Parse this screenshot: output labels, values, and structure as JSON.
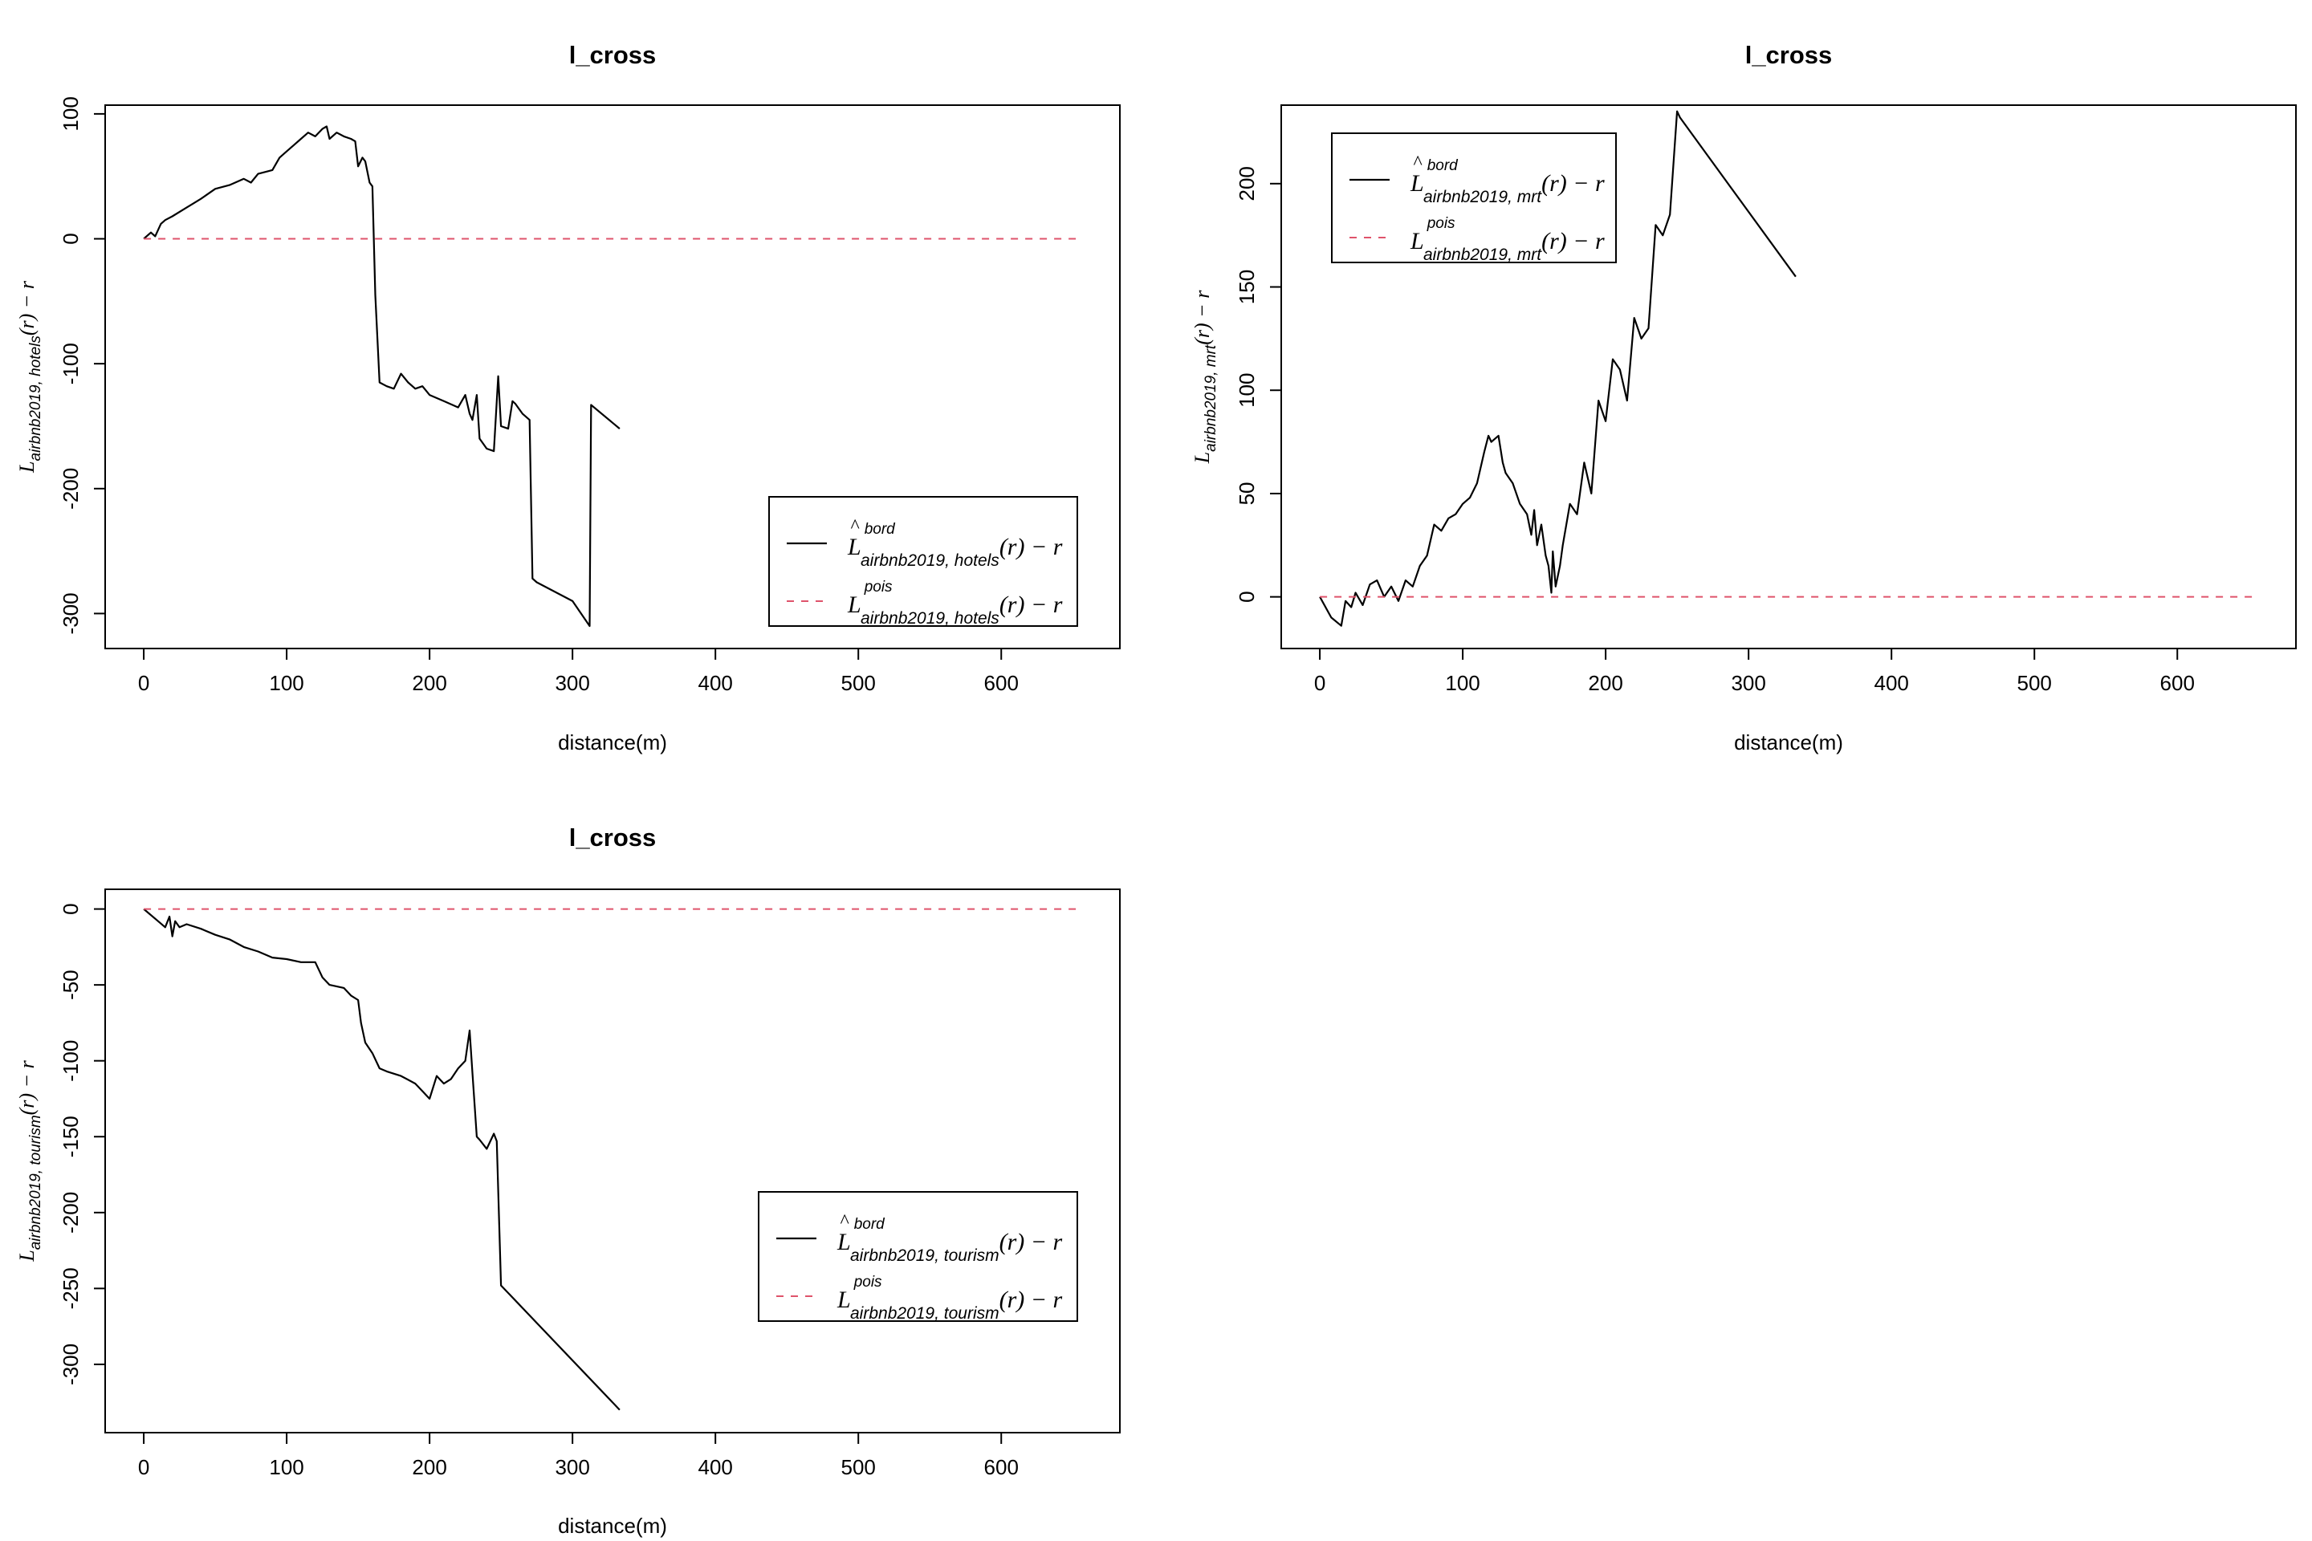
{
  "chart_data": [
    {
      "type": "line",
      "title": "l_cross",
      "xlabel": "distance(m)",
      "ylabel": {
        "base": "L",
        "sub": "airbnb2019, hotels",
        "rest": "(r) − r"
      },
      "xlim": [
        -27,
        683
      ],
      "ylim": [
        -328,
        107
      ],
      "xticks": [
        0,
        100,
        200,
        300,
        400,
        500,
        600
      ],
      "yticks": [
        -300,
        -200,
        -100,
        0,
        100
      ],
      "legend": {
        "position": "bottom-right",
        "entries": [
          {
            "main": "L",
            "hat": "^",
            "sup": "bord",
            "sub": "airbnb2019, hotels",
            "rest": "(r) − r"
          },
          {
            "main": "L",
            "hat": "",
            "sup": "pois",
            "sub": "airbnb2019, hotels",
            "rest": "(r) − r"
          }
        ]
      },
      "series": [
        {
          "name": "bord",
          "color": "#000000",
          "style": "solid",
          "x": [
            0,
            5,
            8,
            12,
            15,
            20,
            30,
            40,
            50,
            60,
            70,
            75,
            80,
            90,
            95,
            100,
            105,
            110,
            115,
            120,
            125,
            128,
            130,
            135,
            140,
            145,
            148,
            150,
            153,
            155,
            158,
            160,
            162,
            165,
            170,
            175,
            180,
            185,
            190,
            195,
            200,
            210,
            220,
            225,
            228,
            230,
            233,
            235,
            240,
            245,
            248,
            250,
            255,
            258,
            260,
            265,
            270,
            272,
            275,
            300,
            312,
            313,
            333
          ],
          "y": [
            0,
            5,
            2,
            12,
            15,
            18,
            25,
            32,
            40,
            43,
            48,
            45,
            52,
            55,
            65,
            70,
            75,
            80,
            85,
            82,
            88,
            90,
            80,
            85,
            82,
            80,
            78,
            58,
            65,
            62,
            45,
            42,
            -45,
            -115,
            -118,
            -120,
            -108,
            -115,
            -120,
            -118,
            -125,
            -130,
            -135,
            -125,
            -140,
            -145,
            -125,
            -160,
            -168,
            -170,
            -110,
            -150,
            -152,
            -130,
            -132,
            -140,
            -145,
            -272,
            -275,
            -290,
            -310,
            -133,
            -152
          ]
        },
        {
          "name": "pois",
          "color": "#DF536B",
          "style": "dashed",
          "x": [
            0,
            655
          ],
          "y": [
            0,
            0
          ]
        }
      ]
    },
    {
      "type": "line",
      "title": "l_cross",
      "xlabel": "distance(m)",
      "ylabel": {
        "base": "L",
        "sub": "airbnb2019, mrt",
        "rest": "(r) − r"
      },
      "xlim": [
        -27,
        683
      ],
      "ylim": [
        -25,
        238
      ],
      "xticks": [
        0,
        100,
        200,
        300,
        400,
        500,
        600
      ],
      "yticks": [
        0,
        50,
        100,
        150,
        200
      ],
      "legend": {
        "position": "top-left",
        "entries": [
          {
            "main": "L",
            "hat": "^",
            "sup": "bord",
            "sub": "airbnb2019, mrt",
            "rest": "(r) − r"
          },
          {
            "main": "L",
            "hat": "",
            "sup": "pois",
            "sub": "airbnb2019, mrt",
            "rest": "(r) − r"
          }
        ]
      },
      "series": [
        {
          "name": "bord",
          "color": "#000000",
          "style": "solid",
          "x": [
            0,
            8,
            15,
            18,
            22,
            25,
            30,
            35,
            40,
            45,
            50,
            55,
            60,
            65,
            70,
            75,
            80,
            85,
            90,
            95,
            100,
            105,
            110,
            115,
            118,
            120,
            125,
            128,
            130,
            135,
            140,
            145,
            148,
            150,
            152,
            155,
            158,
            160,
            162,
            163,
            165,
            168,
            170,
            175,
            180,
            182,
            185,
            190,
            195,
            200,
            205,
            210,
            215,
            220,
            225,
            230,
            235,
            240,
            245,
            250,
            252,
            333
          ],
          "y": [
            0,
            -10,
            -14,
            -2,
            -5,
            2,
            -4,
            6,
            8,
            0,
            5,
            -2,
            8,
            5,
            15,
            20,
            35,
            32,
            38,
            40,
            45,
            48,
            55,
            70,
            78,
            75,
            78,
            65,
            60,
            55,
            45,
            40,
            30,
            42,
            25,
            35,
            20,
            15,
            2,
            22,
            5,
            15,
            25,
            45,
            40,
            50,
            65,
            50,
            95,
            85,
            115,
            110,
            95,
            135,
            125,
            130,
            180,
            175,
            185,
            235,
            232,
            155
          ]
        },
        {
          "name": "pois",
          "color": "#DF536B",
          "style": "dashed",
          "x": [
            0,
            655
          ],
          "y": [
            0,
            0
          ]
        }
      ]
    },
    {
      "type": "line",
      "title": "l_cross",
      "xlabel": "distance(m)",
      "ylabel": {
        "base": "L",
        "sub": "airbnb2019, tourism",
        "rest": "(r) − r"
      },
      "xlim": [
        -27,
        683
      ],
      "ylim": [
        -345,
        13
      ],
      "xticks": [
        0,
        100,
        200,
        300,
        400,
        500,
        600
      ],
      "yticks": [
        -300,
        -250,
        -200,
        -150,
        -100,
        -50,
        0
      ],
      "legend": {
        "position": "right",
        "entries": [
          {
            "main": "L",
            "hat": "^",
            "sup": "bord",
            "sub": "airbnb2019, tourism",
            "rest": "(r) − r"
          },
          {
            "main": "L",
            "hat": "",
            "sup": "pois",
            "sub": "airbnb2019, tourism",
            "rest": "(r) − r"
          }
        ]
      },
      "series": [
        {
          "name": "bord",
          "color": "#000000",
          "style": "solid",
          "x": [
            0,
            10,
            15,
            18,
            20,
            22,
            25,
            30,
            40,
            50,
            60,
            70,
            80,
            90,
            100,
            110,
            120,
            125,
            130,
            140,
            145,
            150,
            152,
            155,
            160,
            165,
            170,
            180,
            190,
            195,
            200,
            205,
            210,
            215,
            220,
            225,
            228,
            230,
            233,
            235,
            240,
            245,
            247,
            250,
            333
          ],
          "y": [
            0,
            -8,
            -12,
            -5,
            -18,
            -8,
            -12,
            -10,
            -13,
            -17,
            -20,
            -25,
            -28,
            -32,
            -33,
            -35,
            -35,
            -45,
            -50,
            -52,
            -57,
            -60,
            -75,
            -88,
            -95,
            -105,
            -107,
            -110,
            -115,
            -120,
            -125,
            -110,
            -115,
            -112,
            -105,
            -100,
            -80,
            -108,
            -150,
            -152,
            -158,
            -148,
            -153,
            -248,
            -330
          ]
        },
        {
          "name": "pois",
          "color": "#DF536B",
          "style": "dashed",
          "x": [
            0,
            655
          ],
          "y": [
            0,
            0
          ]
        }
      ]
    }
  ]
}
